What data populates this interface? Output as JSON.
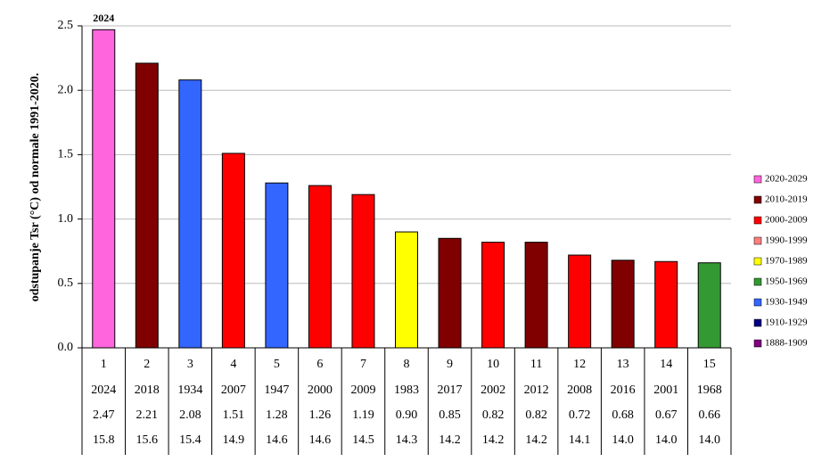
{
  "chart_data": {
    "type": "bar",
    "y_label": "odstupanje Tsr (°C) od normale 1991-2020.",
    "annotation": "2024",
    "categories": [
      "1",
      "2",
      "3",
      "4",
      "5",
      "6",
      "7",
      "8",
      "9",
      "10",
      "11",
      "12",
      "13",
      "14",
      "15"
    ],
    "values": [
      2.47,
      2.21,
      2.08,
      1.51,
      1.28,
      1.26,
      1.19,
      0.9,
      0.85,
      0.82,
      0.82,
      0.72,
      0.68,
      0.67,
      0.66
    ],
    "value_labels": [
      "2.47",
      "2.21",
      "2.08",
      "1.51",
      "1.28",
      "1.26",
      "1.19",
      "0.90",
      "0.85",
      "0.82",
      "0.82",
      "0.72",
      "0.68",
      "0.67",
      "0.66"
    ],
    "colors": [
      "#ff66dd",
      "#800000",
      "#3366ff",
      "#ff0000",
      "#3366ff",
      "#ff0000",
      "#ff0000",
      "#ffff00",
      "#800000",
      "#ff0000",
      "#800000",
      "#ff0000",
      "#800000",
      "#ff0000",
      "#339933"
    ],
    "years": [
      "2024",
      "2018",
      "1934",
      "2007",
      "1947",
      "2000",
      "2009",
      "1983",
      "2017",
      "2002",
      "2012",
      "2008",
      "2016",
      "2001",
      "1968"
    ],
    "temperatures": [
      "15.8",
      "15.6",
      "15.4",
      "14.9",
      "14.6",
      "14.6",
      "14.5",
      "14.3",
      "14.2",
      "14.2",
      "14.2",
      "14.1",
      "14.0",
      "14.0",
      "14.0"
    ],
    "ylim": [
      0,
      2.5
    ],
    "yticks": [
      {
        "value": 0,
        "label": "0.0"
      },
      {
        "value": 0.5,
        "label": "0.5"
      },
      {
        "value": 1,
        "label": "1.0"
      },
      {
        "value": 1.5,
        "label": "1.5"
      },
      {
        "value": 2,
        "label": "2.0"
      },
      {
        "value": 2.5,
        "label": "2.5"
      }
    ],
    "grid": true,
    "legend": [
      {
        "name": "2020-2029",
        "color": "#ff66dd"
      },
      {
        "name": "2010-2019",
        "color": "#800000"
      },
      {
        "name": "2000-2009",
        "color": "#ff0000"
      },
      {
        "name": "1990-1999",
        "color": "#ff8080"
      },
      {
        "name": "1970-1989",
        "color": "#ffff00"
      },
      {
        "name": "1950-1969",
        "color": "#339933"
      },
      {
        "name": "1930-1949",
        "color": "#3366ff"
      },
      {
        "name": "1910-1929",
        "color": "#000080"
      },
      {
        "name": "1888-1909",
        "color": "#800080"
      }
    ]
  }
}
